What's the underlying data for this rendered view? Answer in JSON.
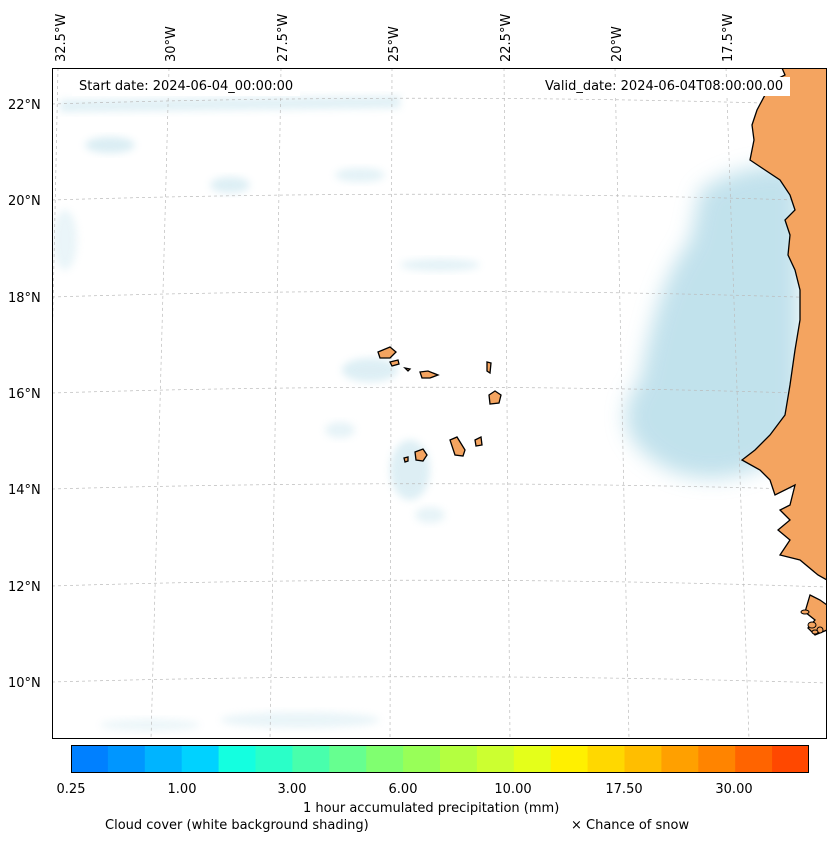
{
  "map": {
    "start_date": "Start date: 2024-06-04_00:00:00",
    "valid_date": "Valid_date: 2024-06-04T08:00:00.00",
    "longitude_labels": [
      "32.5°W",
      "30°W",
      "27.5°W",
      "25°W",
      "22.5°W",
      "20°W",
      "17.5°W"
    ],
    "latitude_labels": [
      "22°N",
      "20°N",
      "18°N",
      "16°N",
      "14°N",
      "12°N",
      "10°N"
    ],
    "colors": {
      "land": "#f4a460",
      "cloud": "#add8e6",
      "gridline": "#bbbbbb",
      "coastline": "#000000"
    }
  },
  "colorbar": {
    "label": "1 hour accumulated precipitation (mm)",
    "tick_labels": [
      "0.25",
      "1.00",
      "3.00",
      "6.00",
      "10.00",
      "17.50",
      "30.00"
    ],
    "colors": [
      "#0080ff",
      "#0096ff",
      "#00b4ff",
      "#00d2ff",
      "#14ffe0",
      "#2affc8",
      "#48ffac",
      "#66ff90",
      "#80ff70",
      "#98ff58",
      "#b4ff40",
      "#ccff30",
      "#e4ff1a",
      "#fff000",
      "#ffd800",
      "#ffbe00",
      "#ffa000",
      "#ff8400",
      "#ff6400",
      "#ff4800"
    ]
  },
  "legend": {
    "cloud_note": "Cloud cover (white background shading)",
    "snow_note": "× Chance of snow"
  }
}
